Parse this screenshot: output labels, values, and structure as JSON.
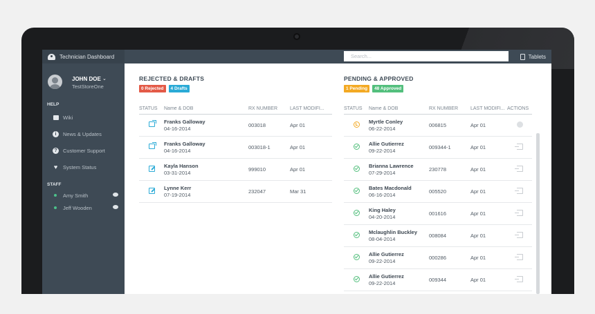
{
  "app": {
    "title": "Technician Dashboard",
    "brand_icon": "dashboard-icon"
  },
  "topbar": {
    "search_placeholder": "Search...",
    "tablets_label": "Tablets",
    "tablets_icon": "tablet-icon"
  },
  "user": {
    "name": "JOHN DOE",
    "store": "TestStoreOne",
    "chevron": "⌄"
  },
  "sidebar": {
    "help_heading": "HELP",
    "help_items": [
      {
        "label": "Wiki",
        "icon": "book-icon"
      },
      {
        "label": "News & Updates",
        "icon": "info-icon"
      },
      {
        "label": "Customer Support",
        "icon": "question-icon"
      },
      {
        "label": "System Status",
        "icon": "heartbeat-icon"
      }
    ],
    "staff_heading": "STAFF",
    "staff": [
      {
        "name": "Amy Smith",
        "status": "online"
      },
      {
        "name": "Jeff Wooden",
        "status": "online"
      }
    ]
  },
  "rejected": {
    "title": "REJECTED & DRAFTS",
    "badge_rejected": "0 Rejected",
    "badge_drafts": "4 Drafts",
    "columns": [
      "STATUS",
      "Name & DOB",
      "RX NUMBER",
      "LAST MODIFI..."
    ],
    "rows": [
      {
        "status": "sent",
        "name": "Franks Galloway",
        "dob": "04-16-2014",
        "rx": "003018",
        "modified": "Apr 01"
      },
      {
        "status": "sent",
        "name": "Franks Galloway",
        "dob": "04-16-2014",
        "rx": "003018-1",
        "modified": "Apr 01"
      },
      {
        "status": "draft",
        "name": "Kayla Hanson",
        "dob": "03-31-2014",
        "rx": "999010",
        "modified": "Apr 01"
      },
      {
        "status": "draft",
        "name": "Lynne Kerr",
        "dob": "07-19-2014",
        "rx": "232047",
        "modified": "Mar 31"
      }
    ]
  },
  "approved": {
    "title": "PENDING & APPROVED",
    "badge_pending": "1 Pending",
    "badge_approved": "48 Approved",
    "columns": [
      "STATUS",
      "Name & DOB",
      "RX NUMBER",
      "LAST MODIFI...",
      "ACTIONS"
    ],
    "rows": [
      {
        "status": "pending",
        "name": "Myrtle Conley",
        "dob": "06-22-2014",
        "rx": "006815",
        "modified": "Apr 01"
      },
      {
        "status": "approved",
        "name": "Allie Gutierrez",
        "dob": "09-22-2014",
        "rx": "009344-1",
        "modified": "Apr 01"
      },
      {
        "status": "approved",
        "name": "Brianna Lawrence",
        "dob": "07-29-2014",
        "rx": "230778",
        "modified": "Apr 01"
      },
      {
        "status": "approved",
        "name": "Bates Macdonald",
        "dob": "06-16-2014",
        "rx": "005520",
        "modified": "Apr 01"
      },
      {
        "status": "approved",
        "name": "King Haley",
        "dob": "04-20-2014",
        "rx": "001616",
        "modified": "Apr 01"
      },
      {
        "status": "approved",
        "name": "Mclaughlin Buckley",
        "dob": "08-04-2014",
        "rx": "008084",
        "modified": "Apr 01"
      },
      {
        "status": "approved",
        "name": "Allie Gutierrez",
        "dob": "09-22-2014",
        "rx": "000286",
        "modified": "Apr 01"
      },
      {
        "status": "approved",
        "name": "Allie Gutierrez",
        "dob": "09-22-2014",
        "rx": "009344",
        "modified": "Apr 01"
      }
    ]
  },
  "colors": {
    "sidebar": "#3e4a55",
    "accent_blue": "#2aaad6",
    "red": "#e35a47",
    "orange": "#f3a923",
    "green": "#53bf7d"
  }
}
